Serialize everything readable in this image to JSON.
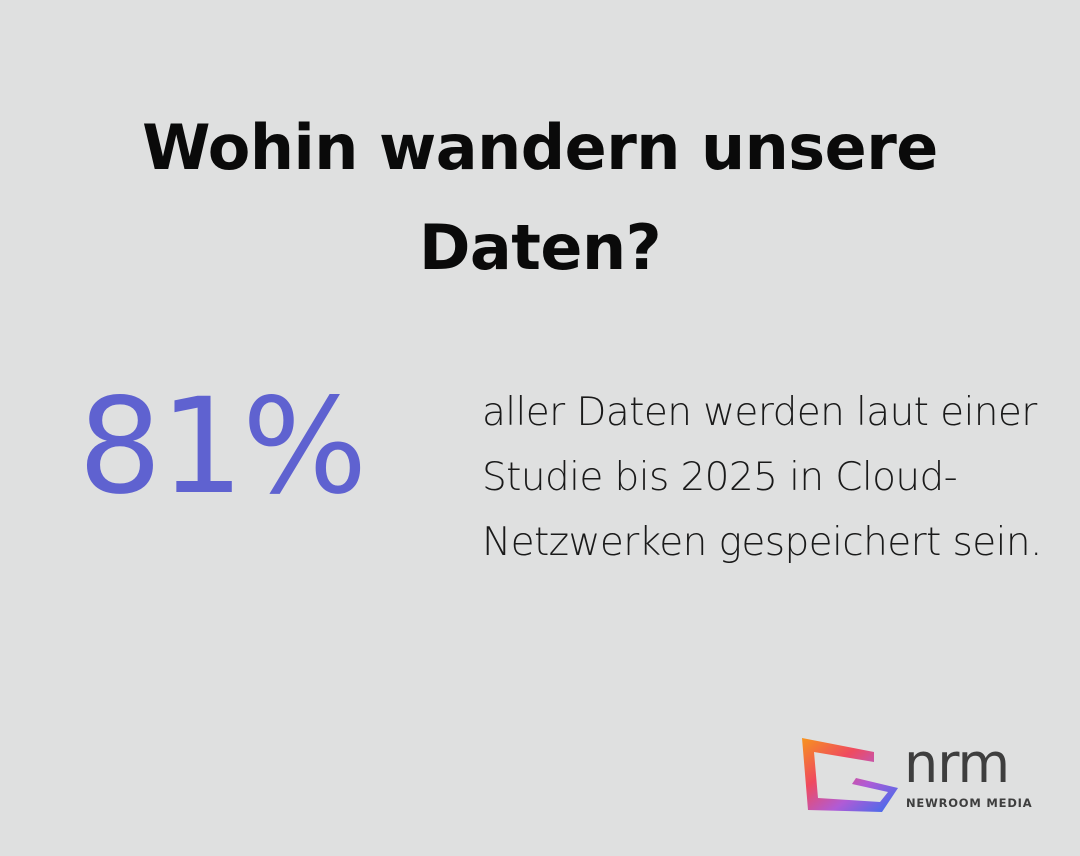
{
  "title": "Wohin wandern unsere Daten?",
  "stat": {
    "value": "81%",
    "description": "aller Daten werden laut einer Studie bis 2025 in Cloud-Netzwerken gespeichert sein."
  },
  "logo": {
    "wordmark": "nrm",
    "tagline": "NEWROOM MEDIA"
  },
  "colors": {
    "background": "#dfe0e0",
    "accent": "#5f62d0",
    "text": "#111111"
  }
}
